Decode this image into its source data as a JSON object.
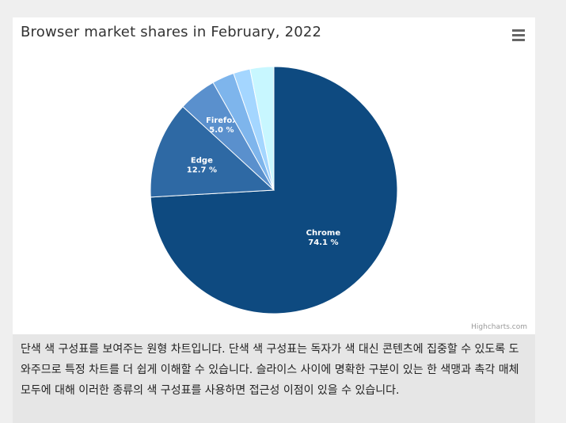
{
  "chart_data": {
    "type": "pie",
    "title": "Browser market shares in February, 2022",
    "categories": [
      "Chrome",
      "Edge",
      "Firefox",
      "",
      "",
      ""
    ],
    "values": [
      74.1,
      12.7,
      5.0,
      2.9,
      2.2,
      3.1
    ],
    "labels": [
      "Chrome\n74.1 %",
      "Edge\n12.7 %",
      "Firefox\n5.0 %",
      "",
      "",
      ""
    ],
    "colors": [
      "#0e4a80",
      "#2e69a4",
      "#5a90cd",
      "#7eb5ec",
      "#a4d6ff",
      "#c8f7ff"
    ],
    "legend": "none"
  },
  "menu": {
    "icon": "hamburger-menu-icon"
  },
  "credits": "Highcharts.com",
  "description": "단색 색 구성표를 보여주는 원형 차트입니다. 단색 색 구성표는 독자가 색 대신 콘텐츠에 집중할 수 있도록 도와주므로 특정 차트를 더 쉽게 이해할 수 있습니다. 슬라이스 사이에 명확한 구분이 있는 한 색맹과 촉각 매체 모두에 대해 이러한 종류의 색 구성표를 사용하면 접근성 이점이 있을 수 있습니다."
}
